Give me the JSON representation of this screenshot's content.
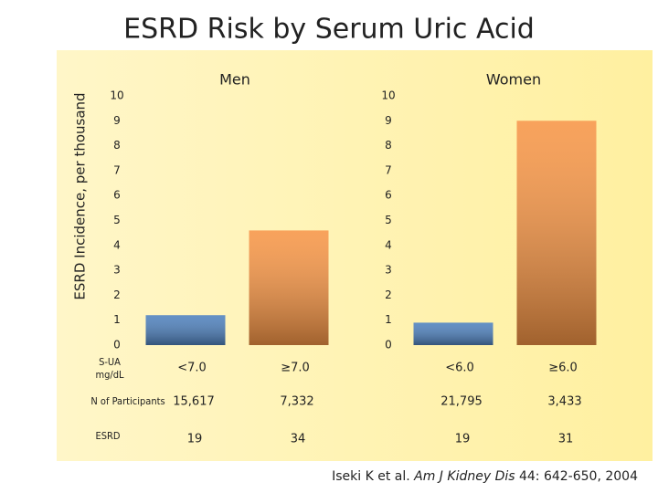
{
  "title": "ESRD Risk by Serum Uric Acid",
  "y_label": "ESRD Incidence, per thousand",
  "chart_data": [
    {
      "type": "bar",
      "title": "Men",
      "categories": [
        "<7.0",
        "≥7.0"
      ],
      "values": [
        1.2,
        4.6
      ],
      "colors": [
        "#4f81bd",
        "#f79646"
      ],
      "ylim": [
        0,
        10
      ],
      "yticks": [
        0,
        1,
        2,
        3,
        4,
        5,
        6,
        7,
        8,
        9,
        10
      ],
      "grid": false,
      "participants": [
        "15,617",
        "7,332"
      ],
      "esrd": [
        "19",
        "34"
      ]
    },
    {
      "type": "bar",
      "title": "Women",
      "categories": [
        "<6.0",
        "≥6.0"
      ],
      "values": [
        0.9,
        9.0
      ],
      "colors": [
        "#4f81bd",
        "#f79646"
      ],
      "ylim": [
        0,
        10
      ],
      "yticks": [
        0,
        1,
        2,
        3,
        4,
        5,
        6,
        7,
        8,
        9,
        10
      ],
      "grid": false,
      "participants": [
        "21,795",
        "3,433"
      ],
      "esrd": [
        "19",
        "31"
      ]
    }
  ],
  "row_labels": {
    "s_ua": [
      "S-UA",
      "mg/dL"
    ],
    "participants": "N of Participants",
    "esrd": "ESRD"
  },
  "citation": [
    "Iseki K et al. ",
    "Am J Kidney Dis",
    " 44: 642-650, 2004"
  ]
}
